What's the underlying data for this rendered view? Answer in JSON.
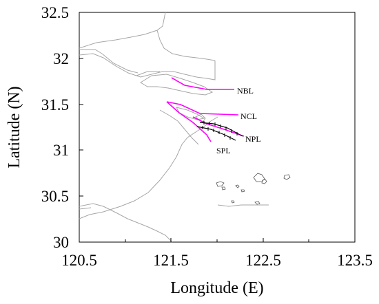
{
  "map": {
    "x_axis": {
      "title": "Longitude (E)",
      "ticks": [
        "120.5",
        "121.5",
        "122.5",
        "123.5"
      ],
      "minor_ticks": [
        "121",
        "122",
        "123"
      ],
      "range": [
        120.5,
        123.5
      ]
    },
    "y_axis": {
      "title": "Latitude (N)",
      "ticks": [
        "30",
        "30.5",
        "31",
        "31.5",
        "32",
        "32.5"
      ],
      "range": [
        30,
        32.5
      ]
    },
    "colors": {
      "section_lines": "#ff00ff",
      "dikes": "#000000",
      "coastline": "#a6a6a6"
    },
    "annotations": [
      {
        "label": "NBL"
      },
      {
        "label": "NCL"
      },
      {
        "label": "NPL"
      },
      {
        "label": "SPL"
      }
    ]
  }
}
